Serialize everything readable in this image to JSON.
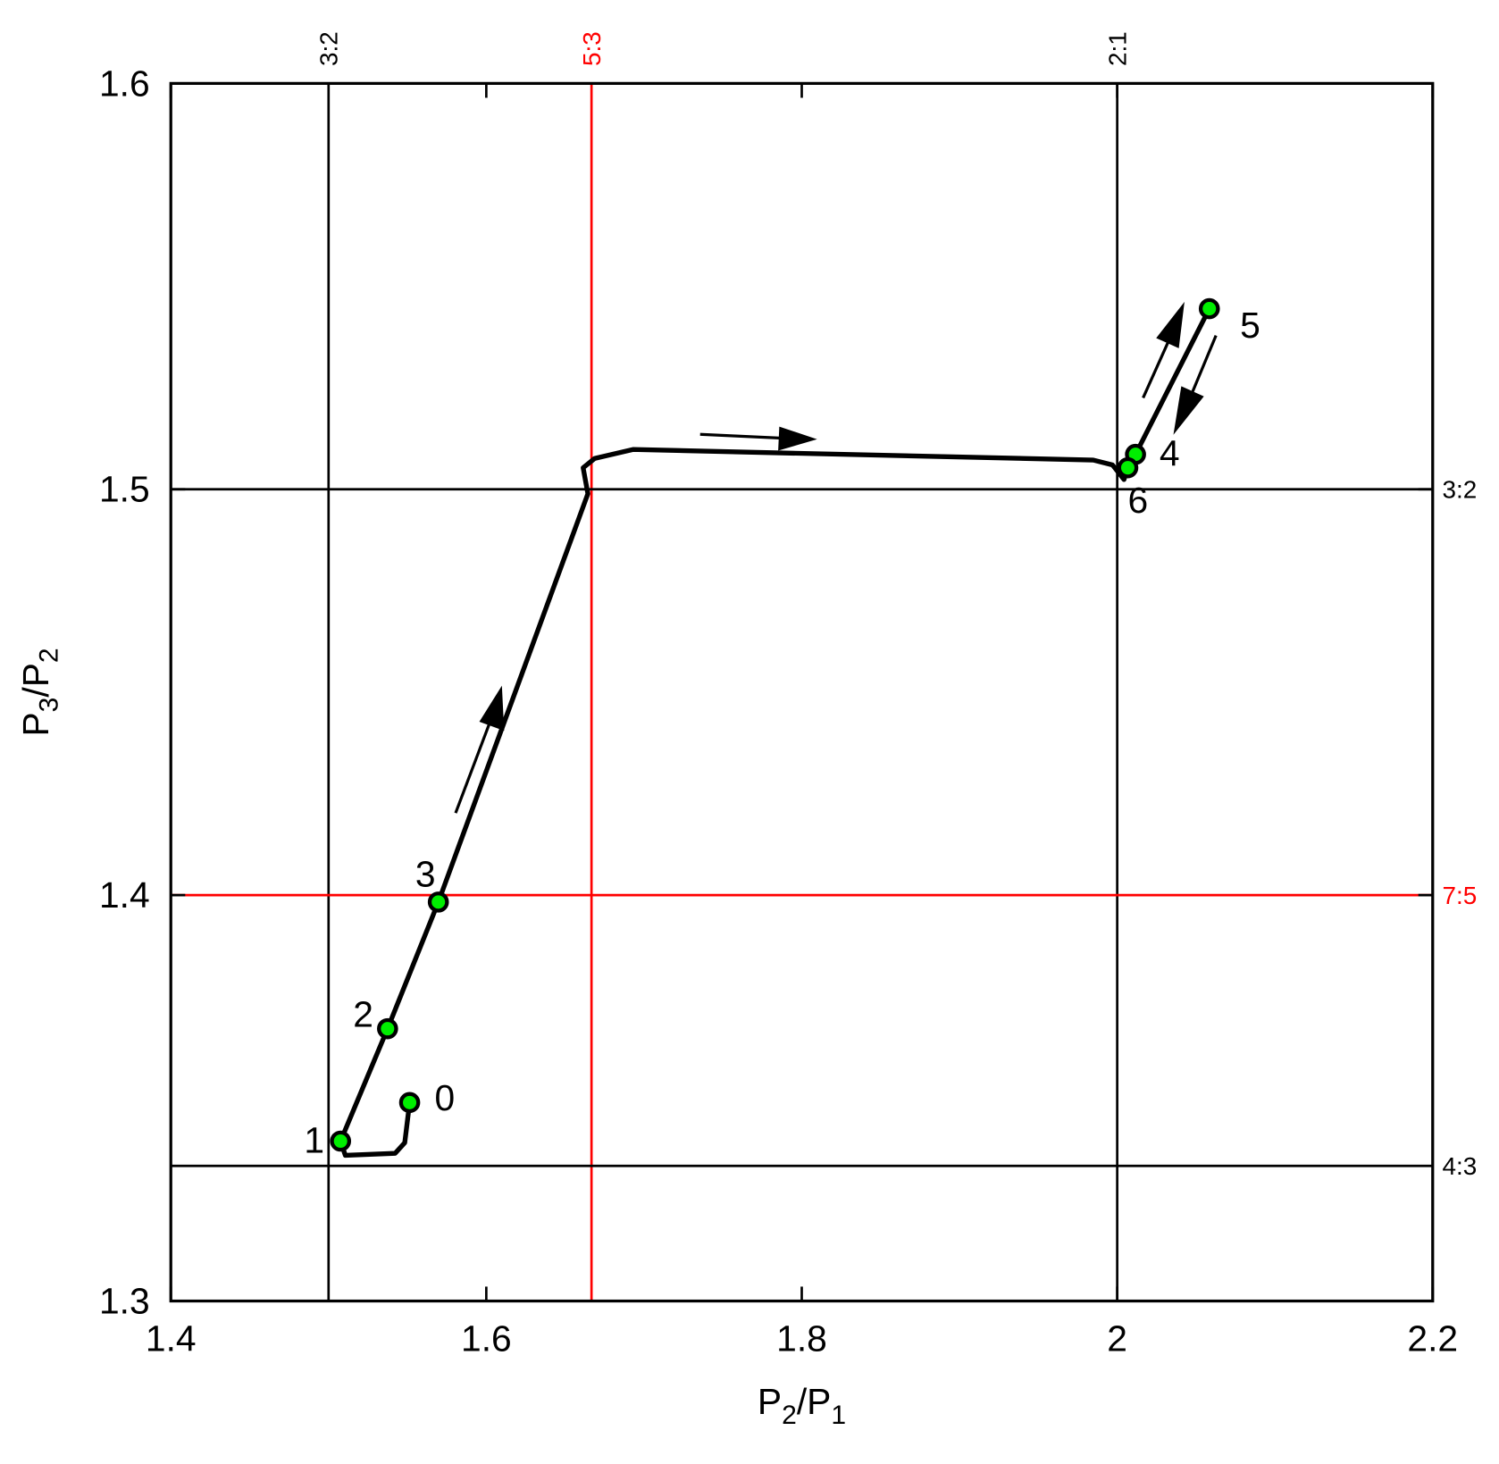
{
  "chart_data": {
    "type": "line",
    "xlabel": [
      "P",
      "2",
      "/P",
      "1"
    ],
    "ylabel": [
      "P",
      "3",
      "/P",
      "2"
    ],
    "xlim": [
      1.4,
      2.2
    ],
    "ylim": [
      1.3,
      1.6
    ],
    "xticks": [
      1.4,
      1.6,
      1.8,
      2,
      2.2
    ],
    "yticks": [
      1.3,
      1.4,
      1.5,
      1.6
    ],
    "vlines": [
      {
        "value": 1.5,
        "label": "3:2",
        "color": "#000000"
      },
      {
        "value": 1.6667,
        "label": "5:3",
        "color": "#ff0000"
      },
      {
        "value": 2,
        "label": "2:1",
        "color": "#000000"
      }
    ],
    "hlines": [
      {
        "value": 1.5,
        "label": "3:2",
        "color": "#000000"
      },
      {
        "value": 1.4,
        "label": "7:5",
        "color": "#ff0000"
      },
      {
        "value": 1.3333,
        "label": "4:3",
        "color": "#000000"
      }
    ],
    "series": [
      {
        "color": "#000000",
        "x": [
          1.5514,
          1.5483,
          1.5422,
          1.5106,
          1.5076,
          1.5374,
          1.5696,
          1.6644,
          1.6614,
          1.6687,
          1.693,
          1.9848,
          1.997,
          2.0043,
          2.0067,
          2.0116,
          2.0584
        ],
        "y": [
          1.3489,
          1.339,
          1.3364,
          1.3359,
          1.3394,
          1.3671,
          1.3983,
          1.4989,
          1.5053,
          1.5076,
          1.5098,
          1.5072,
          1.506,
          1.5024,
          1.5053,
          1.5086,
          1.5445
        ]
      }
    ],
    "points": [
      {
        "label": "0",
        "x": 1.5514,
        "y": 1.3489
      },
      {
        "label": "1",
        "x": 1.5076,
        "y": 1.3394
      },
      {
        "label": "2",
        "x": 1.5374,
        "y": 1.3671
      },
      {
        "label": "3",
        "x": 1.5696,
        "y": 1.3983
      },
      {
        "label": "4",
        "x": 2.0116,
        "y": 1.5086
      },
      {
        "label": "5",
        "x": 2.0584,
        "y": 1.5445
      },
      {
        "label": "6",
        "x": 2.0067,
        "y": 1.5053
      }
    ],
    "point_color": "#00ee00"
  }
}
